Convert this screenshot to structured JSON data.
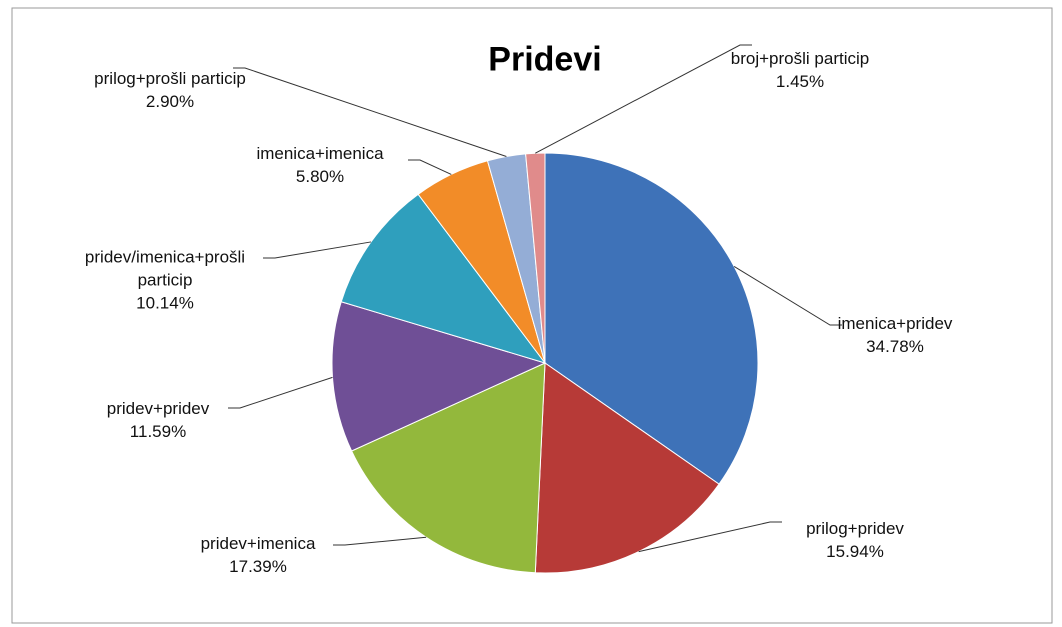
{
  "chart_data": {
    "type": "pie",
    "title": "Pridevi",
    "categories": [
      "imenica+pridev",
      "prilog+pridev",
      "pridev+imenica",
      "pridev+pridev",
      "pridev/imenica+prošli particip",
      "imenica+imenica",
      "prilog+prošli particip",
      "broj+prošli particip"
    ],
    "values": [
      34.78,
      15.94,
      17.39,
      11.59,
      10.14,
      5.8,
      2.9,
      1.45
    ],
    "value_labels": [
      "34.78%",
      "15.94%",
      "17.39%",
      "11.59%",
      "10.14%",
      "5.80%",
      "2.90%",
      "1.45%"
    ],
    "colors": [
      "#3e72b8",
      "#b73a37",
      "#93b83c",
      "#6f4f96",
      "#2f9fbd",
      "#f28c28",
      "#94add6",
      "#e08b8b"
    ]
  }
}
